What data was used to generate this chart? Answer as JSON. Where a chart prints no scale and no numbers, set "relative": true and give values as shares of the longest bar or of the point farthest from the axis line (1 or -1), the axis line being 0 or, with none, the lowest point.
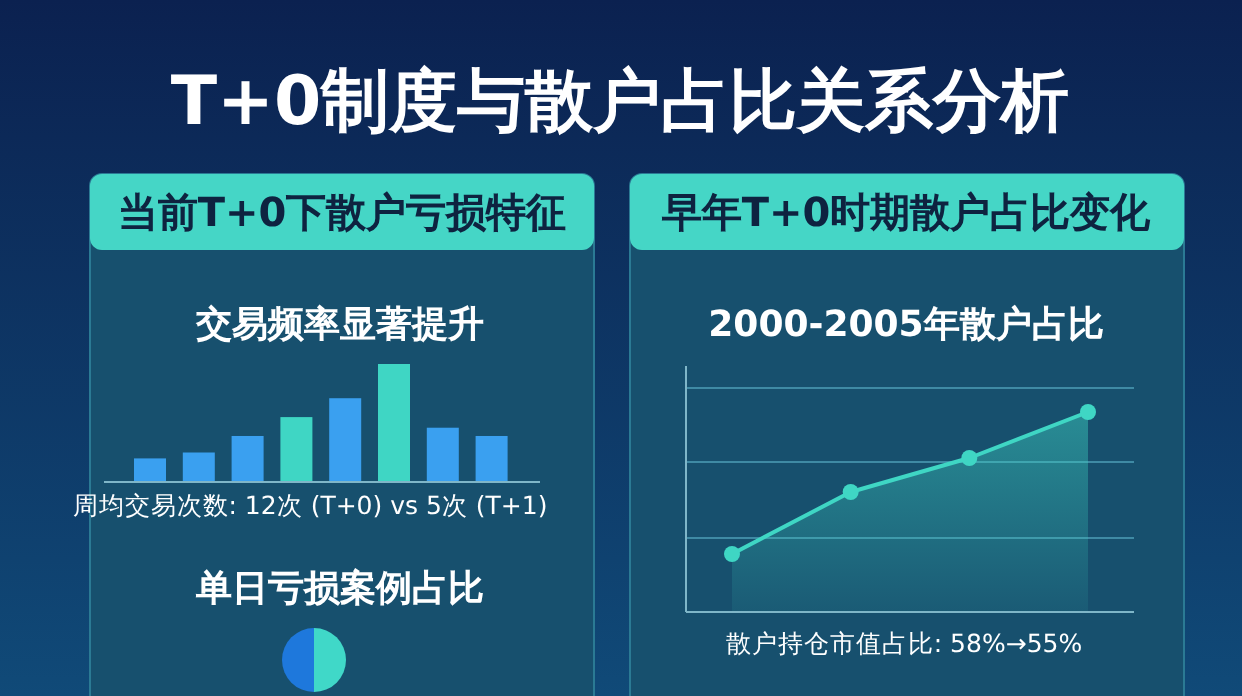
{
  "chart_data": [
    {
      "type": "other",
      "title": "T+0制度与散户占比关系分析",
      "annotations": [
        "当前T+0下散户亏损特征",
        "早年T+0时期散户占比变化"
      ]
    },
    {
      "type": "bar",
      "relative": true,
      "title": "交易频率显著提升",
      "categories": [
        null,
        null,
        null,
        null,
        null,
        null,
        null,
        null
      ],
      "values": [
        0.2,
        0.25,
        0.39,
        0.55,
        0.71,
        1,
        0.46,
        0.39
      ],
      "colors": [
        "#3aa0f0",
        "#3aa0f0",
        "#3aa0f0",
        "#3fd6c4",
        "#3aa0f0",
        "#3fd6c4",
        "#3aa0f0",
        "#3aa0f0"
      ],
      "annotations": [
        "周均交易次数: 12次 (T+0) vs 5次 (T+1)"
      ]
    },
    {
      "type": "pie",
      "title": "单日亏损案例占比",
      "categories": [
        null,
        null
      ],
      "values": [
        50,
        50
      ],
      "colors": [
        "#40d8c8",
        "#1e78dc"
      ]
    },
    {
      "type": "area",
      "relative": true,
      "title": "2000-2005年散户占比",
      "categories": [
        null,
        null,
        null,
        null
      ],
      "series": [
        {
          "color": "#3fd6c4",
          "values": [
            0.29,
            0.6,
            0.77,
            1
          ]
        }
      ],
      "marker": "circle",
      "ref_lines": [
        {
          "axis": "y",
          "value": 0.37,
          "color": "#3f8aa4"
        },
        {
          "axis": "y",
          "value": 0.75,
          "color": "#3f8aa4"
        },
        {
          "axis": "y",
          "value": 1.12,
          "color": "#3f8aa4"
        }
      ],
      "annotations": [
        "散户持仓市值占比: 58%→55%"
      ]
    }
  ]
}
